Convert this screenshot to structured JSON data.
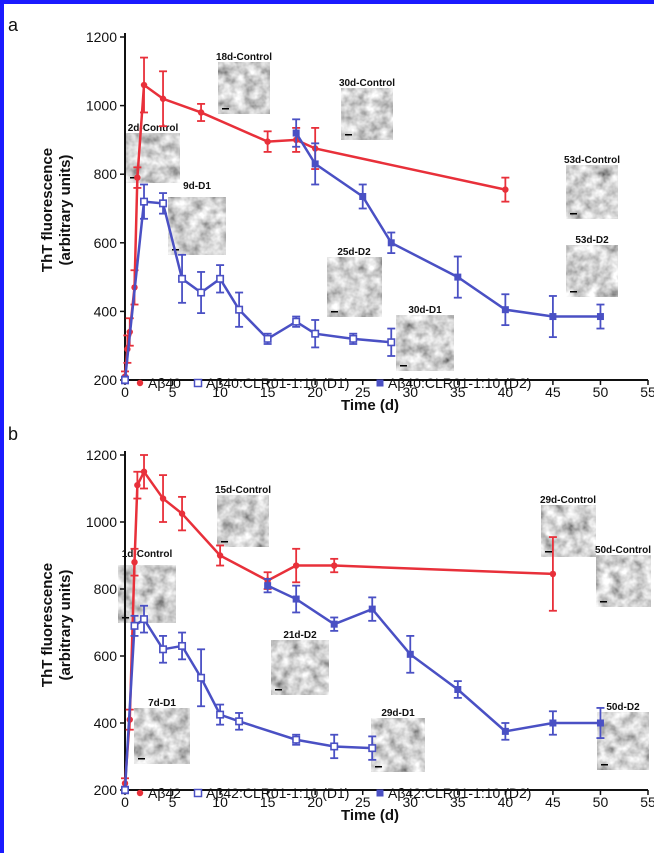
{
  "figure": {
    "border_color": "#1a1aff"
  },
  "chart_data": [
    {
      "type": "line",
      "panel": "a",
      "xlabel": "Time (d)",
      "ylabel": [
        "ThT fluorescence",
        "(arbitrary units)"
      ],
      "xlim": [
        0,
        55
      ],
      "ylim": [
        200,
        1200
      ],
      "xticks": [
        0,
        5,
        10,
        15,
        20,
        25,
        30,
        35,
        40,
        45,
        50,
        55
      ],
      "yticks": [
        200,
        400,
        600,
        800,
        1000,
        1200
      ],
      "series": [
        {
          "name": "Aβ40",
          "color": "#e8303a",
          "marker": "circle-filled",
          "x": [
            0,
            0.25,
            0.5,
            1,
            1.3,
            2,
            4,
            8,
            15,
            18,
            20,
            40
          ],
          "y": [
            210,
            290,
            340,
            470,
            790,
            1060,
            1020,
            980,
            895,
            900,
            875,
            755
          ],
          "err": [
            15,
            40,
            40,
            50,
            30,
            80,
            80,
            25,
            30,
            35,
            60,
            35
          ]
        },
        {
          "name": "Aβ40:CLR01-1:10 (D1)",
          "color": "#4a50c4",
          "marker": "square-open",
          "x": [
            0,
            2,
            4,
            6,
            8,
            10,
            12,
            15,
            18,
            20,
            24,
            28
          ],
          "y": [
            200,
            720,
            715,
            495,
            455,
            495,
            405,
            320,
            370,
            335,
            320,
            310
          ],
          "err": [
            10,
            50,
            30,
            70,
            60,
            40,
            50,
            15,
            15,
            40,
            15,
            40
          ]
        },
        {
          "name": "Aβ40:CLR01-1:10 (D2)",
          "color": "#4a50c4",
          "marker": "square-filled",
          "x": [
            18,
            20,
            25,
            28,
            35,
            40,
            45,
            50
          ],
          "y": [
            920,
            830,
            735,
            600,
            500,
            405,
            385,
            385
          ],
          "err": [
            40,
            60,
            35,
            30,
            60,
            45,
            60,
            35
          ]
        }
      ],
      "insets": [
        "18d-Control",
        "30d-Control",
        "2d-Control",
        "9d-D1",
        "53d-Control",
        "25d-D2",
        "53d-D2",
        "30d-D1"
      ]
    },
    {
      "type": "line",
      "panel": "b",
      "xlabel": "Time (d)",
      "ylabel": [
        "ThT fluorescence",
        "(arbitrary units)"
      ],
      "xlim": [
        0,
        55
      ],
      "ylim": [
        200,
        1200
      ],
      "xticks": [
        0,
        5,
        10,
        15,
        20,
        25,
        30,
        35,
        40,
        45,
        50,
        55
      ],
      "yticks": [
        200,
        400,
        600,
        800,
        1000,
        1200
      ],
      "series": [
        {
          "name": "Aβ42",
          "color": "#e8303a",
          "marker": "circle-filled",
          "x": [
            0,
            0.5,
            1,
            1.3,
            2,
            4,
            6,
            10,
            15,
            18,
            22,
            45
          ],
          "y": [
            220,
            410,
            880,
            1110,
            1150,
            1070,
            1025,
            900,
            825,
            870,
            870,
            845
          ],
          "err": [
            15,
            30,
            40,
            40,
            50,
            70,
            50,
            30,
            25,
            50,
            20,
            110
          ]
        },
        {
          "name": "Aβ42:CLR01-1:10 (D1)",
          "color": "#4a50c4",
          "marker": "square-open",
          "x": [
            0,
            1,
            2,
            4,
            6,
            8,
            10,
            12,
            18,
            22,
            26
          ],
          "y": [
            200,
            690,
            710,
            620,
            630,
            535,
            425,
            405,
            350,
            330,
            325
          ],
          "err": [
            10,
            30,
            40,
            40,
            40,
            85,
            30,
            25,
            15,
            35,
            35
          ]
        },
        {
          "name": "Aβ42:CLR01-1:10 (D2)",
          "color": "#4a50c4",
          "marker": "square-filled",
          "x": [
            15,
            18,
            22,
            26,
            30,
            35,
            40,
            45,
            50
          ],
          "y": [
            810,
            770,
            695,
            740,
            605,
            500,
            375,
            400,
            400
          ],
          "err": [
            20,
            40,
            20,
            35,
            55,
            25,
            25,
            35,
            45
          ]
        }
      ],
      "insets": [
        "15d-Control",
        "29d-Control",
        "1d-Control",
        "50d-Control",
        "21d-D2",
        "7d-D1",
        "29d-D1",
        "50d-D2"
      ]
    }
  ]
}
